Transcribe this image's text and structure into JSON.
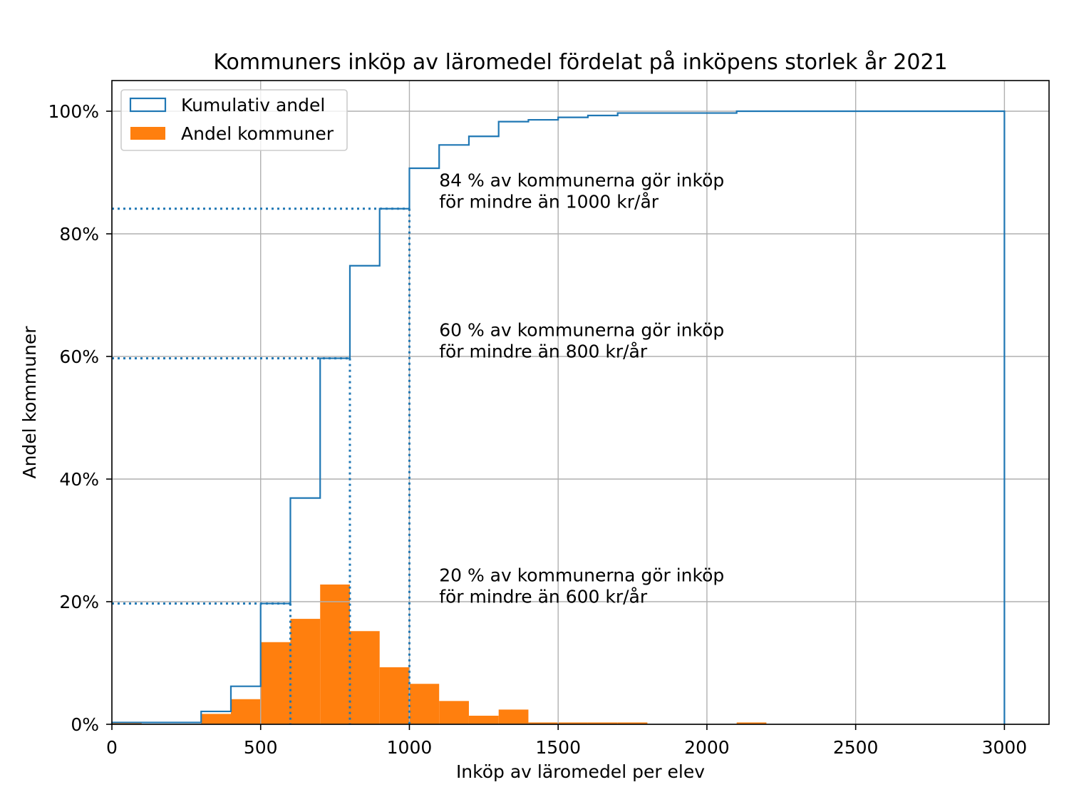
{
  "chart_data": {
    "type": "bar",
    "title": "Kommuners inköp av läromedel fördelat på inköpens storlek år 2021",
    "xlabel": "Inköp av läromedel per elev",
    "ylabel": "Andel kommuner",
    "xlim": [
      0,
      3150
    ],
    "ylim": [
      0,
      105
    ],
    "xticks": [
      0,
      500,
      1000,
      1500,
      2000,
      2500,
      3000
    ],
    "xtick_labels": [
      "0",
      "500",
      "1000",
      "1500",
      "2000",
      "2500",
      "3000"
    ],
    "yticks": [
      0,
      20,
      40,
      60,
      80,
      100
    ],
    "ytick_labels": [
      "0%",
      "20%",
      "40%",
      "60%",
      "80%",
      "100%"
    ],
    "grid": true,
    "legend_position": "upper left",
    "bin_edges": [
      0,
      100,
      200,
      300,
      400,
      500,
      600,
      700,
      800,
      900,
      1000,
      1100,
      1200,
      1300,
      1400,
      1500,
      1600,
      1700,
      1800,
      1900,
      2000,
      2100,
      2200,
      2300,
      2400,
      2500,
      2600,
      2700,
      2800,
      2900,
      3000
    ],
    "series": [
      {
        "name": "Kumulativ andel",
        "type": "step",
        "color": "#1f77b4",
        "values": [
          0.3,
          0.3,
          0.3,
          2.1,
          6.2,
          19.7,
          36.9,
          59.7,
          74.8,
          84.1,
          90.7,
          94.5,
          95.9,
          98.3,
          98.6,
          99.0,
          99.3,
          99.7,
          99.7,
          99.7,
          99.7,
          100,
          100,
          100,
          100,
          100,
          100,
          100,
          100,
          100
        ]
      },
      {
        "name": "Andel kommuner",
        "type": "bar",
        "color": "#ff7f0e",
        "values": [
          0.3,
          0,
          0,
          1.7,
          4.1,
          13.4,
          17.2,
          22.8,
          15.2,
          9.3,
          6.6,
          3.8,
          1.4,
          2.4,
          0.3,
          0.3,
          0.3,
          0.3,
          0,
          0,
          0,
          0.3,
          0,
          0,
          0,
          0,
          0,
          0,
          0,
          0
        ]
      }
    ],
    "reference_lines": [
      {
        "x": 600,
        "y": 19.7
      },
      {
        "x": 800,
        "y": 59.7
      },
      {
        "x": 1000,
        "y": 84.1
      }
    ],
    "annotations": [
      {
        "lines": [
          "20 % av kommunerna gör inköp",
          "för mindre än 600 kr/år"
        ]
      },
      {
        "lines": [
          "60 % av kommunerna gör inköp",
          "för mindre än 800 kr/år"
        ]
      },
      {
        "lines": [
          "84 % av kommunerna gör inköp",
          "för mindre än 1000 kr/år"
        ]
      }
    ]
  }
}
